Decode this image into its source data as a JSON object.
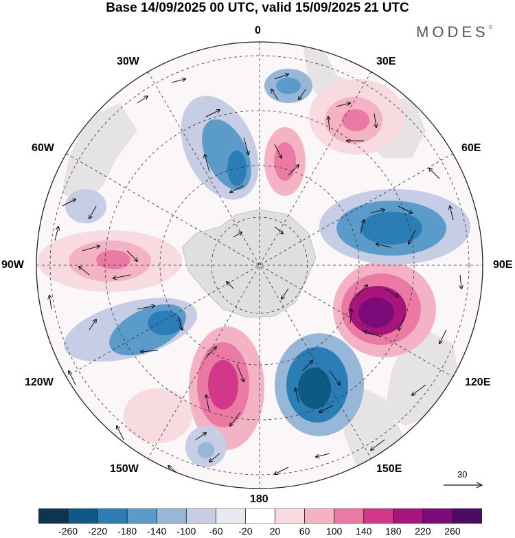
{
  "title": "Base 14/09/2025 00 UTC, valid 15/09/2025 21 UTC",
  "brand": {
    "name": "MODES",
    "mark": "©"
  },
  "map": {
    "projection": "south-polar-stereographic",
    "longitude_labels": {
      "top": "0",
      "top_left": "30W",
      "top_right": "30E",
      "upper_left": "60W",
      "upper_right": "60E",
      "left": "90W",
      "right": "90E",
      "lower_left": "120W",
      "lower_right": "120E",
      "bottom_left": "150W",
      "bottom_right": "150E",
      "bottom": "180"
    },
    "reference_vector": {
      "value": "30"
    }
  },
  "colorbar": {
    "ticks": [
      "-260",
      "-220",
      "-180",
      "-140",
      "-100",
      "-60",
      "-20",
      "20",
      "60",
      "100",
      "140",
      "180",
      "220",
      "260"
    ],
    "colors": [
      "#0e3550",
      "#0f5986",
      "#2a7db5",
      "#5a9bc9",
      "#97b7d9",
      "#c6cde5",
      "#e8e8f1",
      "#ffffff",
      "#f7dbe0",
      "#f3b3c4",
      "#ea7aa4",
      "#d2378a",
      "#a7157c",
      "#7c0a79",
      "#4d0c63"
    ]
  }
}
